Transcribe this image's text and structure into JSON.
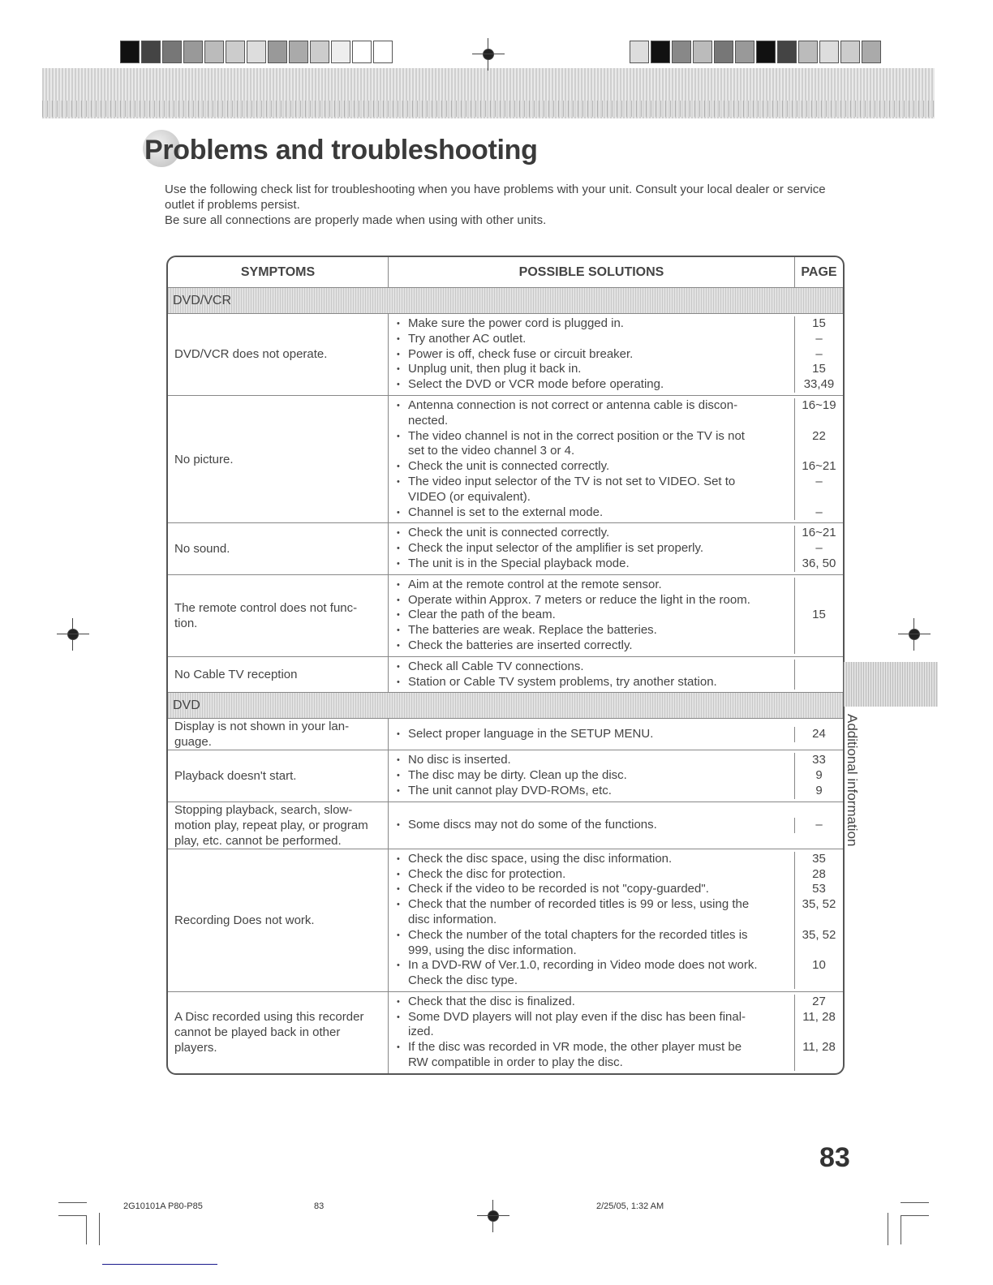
{
  "title": "Problems and troubleshooting",
  "intro": [
    "Use the following check list for troubleshooting when you have problems with your unit. Consult your local dealer or service outlet if problems persist.",
    "Be sure all connections are properly made when using with other units."
  ],
  "table": {
    "headers": [
      "SYMPTOMS",
      "POSSIBLE SOLUTIONS",
      "PAGE"
    ],
    "sections": [
      {
        "label": "DVD/VCR",
        "rows": [
          {
            "symptom": [
              "DVD/VCR does not operate."
            ],
            "solutions": [
              {
                "lines": [
                  "Make sure the power cord is plugged in."
                ],
                "page": "15"
              },
              {
                "lines": [
                  "Try another AC outlet."
                ],
                "page": "–"
              },
              {
                "lines": [
                  "Power is off, check fuse or circuit breaker."
                ],
                "page": "–"
              },
              {
                "lines": [
                  "Unplug unit, then plug it back in."
                ],
                "page": "15"
              },
              {
                "lines": [
                  "Select the DVD or VCR mode before operating."
                ],
                "page": "33,49"
              }
            ]
          },
          {
            "symptom": [
              "No picture."
            ],
            "solutions": [
              {
                "lines": [
                  "Antenna connection is not correct or antenna cable is discon-",
                  "nected."
                ],
                "page": "16~19"
              },
              {
                "lines": [
                  "The video channel is not in the correct position or the TV is not",
                  "set to the video channel 3 or 4."
                ],
                "page": "22"
              },
              {
                "lines": [
                  "Check the unit is connected correctly."
                ],
                "page": "16~21"
              },
              {
                "lines": [
                  "The video input selector of the TV is not set to VIDEO. Set to",
                  "VIDEO (or equivalent)."
                ],
                "page": "–"
              },
              {
                "lines": [
                  "Channel is set to the external mode."
                ],
                "page": "–"
              }
            ]
          },
          {
            "symptom": [
              "No sound."
            ],
            "solutions": [
              {
                "lines": [
                  "Check the unit is connected correctly."
                ],
                "page": "16~21"
              },
              {
                "lines": [
                  "Check the input selector of the amplifier is set properly."
                ],
                "page": "–"
              },
              {
                "lines": [
                  "The unit is in the Special playback mode."
                ],
                "page": "36, 50"
              }
            ]
          },
          {
            "symptom": [
              "The remote control does not func-",
              "tion."
            ],
            "solutions": [
              {
                "lines": [
                  "Aim at the remote control at the remote sensor."
                ],
                "page": ""
              },
              {
                "lines": [
                  "Operate within Approx. 7 meters or reduce the light in the room."
                ],
                "page": ""
              },
              {
                "lines": [
                  "Clear the path of the beam."
                ],
                "page": "15"
              },
              {
                "lines": [
                  "The batteries are weak. Replace the batteries."
                ],
                "page": ""
              },
              {
                "lines": [
                  "Check the batteries are inserted correctly."
                ],
                "page": ""
              }
            ]
          },
          {
            "symptom": [
              "No Cable TV reception"
            ],
            "solutions": [
              {
                "lines": [
                  "Check all Cable TV connections."
                ],
                "page": ""
              },
              {
                "lines": [
                  "Station or Cable TV system problems, try another station."
                ],
                "page": ""
              }
            ]
          }
        ]
      },
      {
        "label": "DVD",
        "rows": [
          {
            "symptom": [
              "Display is not shown in your lan-",
              "guage."
            ],
            "solutions": [
              {
                "lines": [
                  "Select proper language in the SETUP MENU."
                ],
                "page": "24"
              }
            ]
          },
          {
            "symptom": [
              "Playback doesn't start."
            ],
            "solutions": [
              {
                "lines": [
                  "No disc is inserted."
                ],
                "page": "33"
              },
              {
                "lines": [
                  "The disc may be dirty. Clean up the disc."
                ],
                "page": "9"
              },
              {
                "lines": [
                  "The unit cannot play DVD-ROMs, etc."
                ],
                "page": "9"
              }
            ]
          },
          {
            "symptom": [
              "Stopping playback, search, slow-",
              "motion play, repeat play, or program",
              "play, etc. cannot be performed."
            ],
            "solutions": [
              {
                "lines": [
                  "Some discs may not do some of the functions."
                ],
                "page": "–"
              }
            ]
          },
          {
            "symptom": [
              "Recording Does not work."
            ],
            "solutions": [
              {
                "lines": [
                  "Check the disc space, using the disc information."
                ],
                "page": "35"
              },
              {
                "lines": [
                  "Check the disc for protection."
                ],
                "page": "28"
              },
              {
                "lines": [
                  "Check if the video to be recorded is not \"copy-guarded\"."
                ],
                "page": "53"
              },
              {
                "lines": [
                  "Check that the number of recorded titles is 99 or less, using the",
                  "disc information."
                ],
                "page": "35, 52"
              },
              {
                "lines": [
                  "Check the number of the total chapters for the recorded titles is",
                  "999, using the disc information."
                ],
                "page": "35, 52"
              },
              {
                "lines": [
                  "In a DVD-RW of Ver.1.0, recording in Video mode does not work.",
                  "Check the disc type."
                ],
                "page": "10"
              }
            ]
          },
          {
            "symptom": [
              "A Disc recorded using this recorder",
              "cannot be played back in other",
              "players."
            ],
            "solutions": [
              {
                "lines": [
                  "Check that the disc is finalized."
                ],
                "page": "27"
              },
              {
                "lines": [
                  "Some DVD players will not play even if the disc has been final-",
                  "ized."
                ],
                "page": "11, 28"
              },
              {
                "lines": [
                  "If the disc was recorded in VR mode, the other player must be",
                  "RW compatible in order to play the disc."
                ],
                "page": "11, 28"
              }
            ]
          }
        ]
      }
    ]
  },
  "side_tab": "Additional information",
  "page_number": "83",
  "footer": {
    "code": "2G10101A P80-P85",
    "page": "83",
    "date": "2/25/05, 1:32 AM"
  }
}
